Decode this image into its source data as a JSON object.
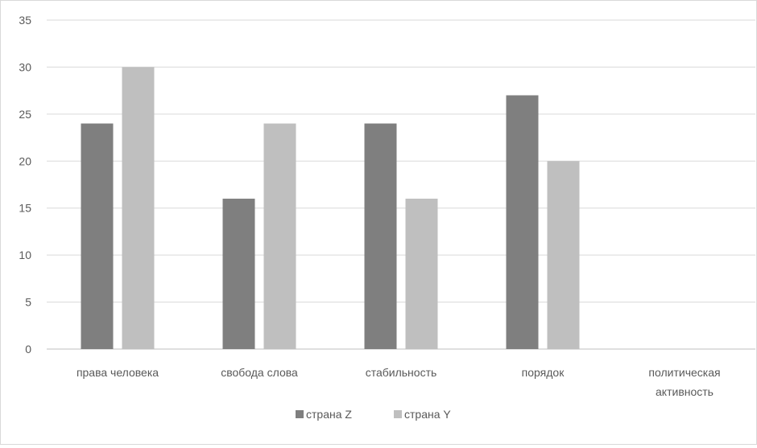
{
  "chart_data": {
    "type": "bar",
    "categories": [
      "права человека",
      "свобода слова",
      "стабильность",
      "порядок",
      "политическая активность"
    ],
    "series": [
      {
        "name": "страна Z",
        "values": [
          24,
          16,
          24,
          27,
          0
        ],
        "color": "#7f7f7f"
      },
      {
        "name": "страна Y",
        "values": [
          30,
          24,
          16,
          20,
          0
        ],
        "color": "#bfbfbf"
      }
    ],
    "y_ticks": [
      "0",
      "5",
      "10",
      "15",
      "20",
      "25",
      "30",
      "35"
    ],
    "ylim": [
      0,
      35
    ],
    "title": "",
    "xlabel": "",
    "ylabel": "",
    "grid": true,
    "legend_position": "bottom",
    "gridline_color": "#d9d9d9",
    "axis_line_color": "#bfbfbf"
  }
}
